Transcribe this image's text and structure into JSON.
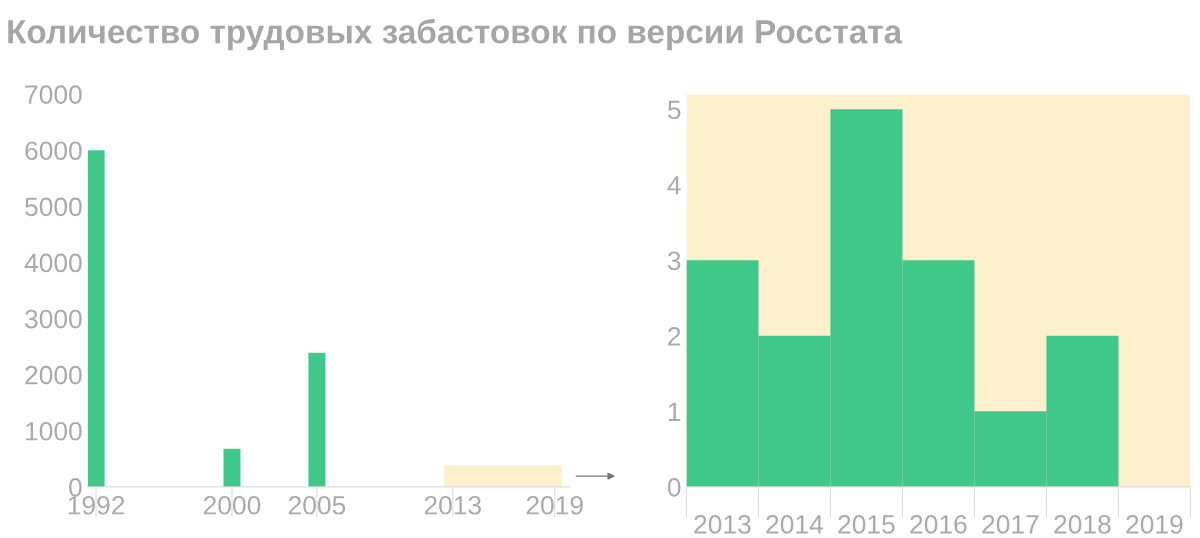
{
  "chart_data": [
    {
      "type": "bar",
      "title": "Количество трудовых забастовок по версии Росстата",
      "x": [
        1992,
        2000,
        2005
      ],
      "values": [
        6000,
        680,
        2390
      ],
      "color": "#40c88a",
      "xlim": [
        1991.5,
        2019.9
      ],
      "xticks": [
        1992,
        2000,
        2005,
        2013,
        2019
      ],
      "ylim": [
        0,
        7000
      ],
      "yticks": [
        0,
        1000,
        2000,
        3000,
        4000,
        5000,
        6000,
        7000
      ],
      "grid": false
    },
    {
      "type": "bar",
      "categories": [
        "2013",
        "2014",
        "2015",
        "2016",
        "2017",
        "2018",
        "2019"
      ],
      "values": [
        3,
        2,
        5,
        3,
        1,
        2,
        null
      ],
      "color": "#40c88a",
      "ylim": [
        0,
        5.2
      ],
      "yticks": [
        0,
        1,
        2,
        3,
        4,
        5
      ],
      "grid": false,
      "bands": [
        {
          "axis": "x",
          "from": "2013",
          "to": "2019",
          "color": "#fdf0cd"
        }
      ]
    }
  ]
}
